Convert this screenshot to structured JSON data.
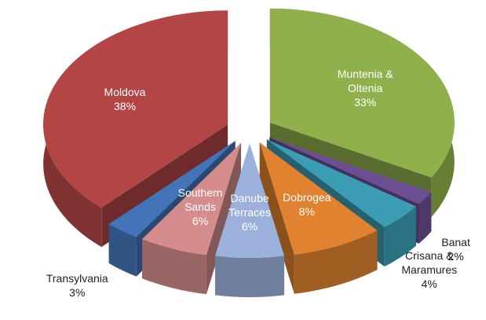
{
  "chart_data": {
    "type": "pie",
    "categories": [
      "Muntenia & Oltenia",
      "Banat",
      "Crisana & Maramures",
      "Dobrogea",
      "Danube Terraces",
      "Southern Sands",
      "Transylvania",
      "Moldova"
    ],
    "values": [
      33,
      2,
      4,
      8,
      6,
      6,
      3,
      38
    ],
    "value_labels": [
      "33%",
      "2%",
      "4%",
      "8%",
      "6%",
      "6%",
      "3%",
      "38%"
    ],
    "colors": [
      "#8fb04a",
      "#6c4e92",
      "#3b9db3",
      "#e0822f",
      "#9bb0da",
      "#d48c8c",
      "#4474b8",
      "#b34545"
    ]
  }
}
